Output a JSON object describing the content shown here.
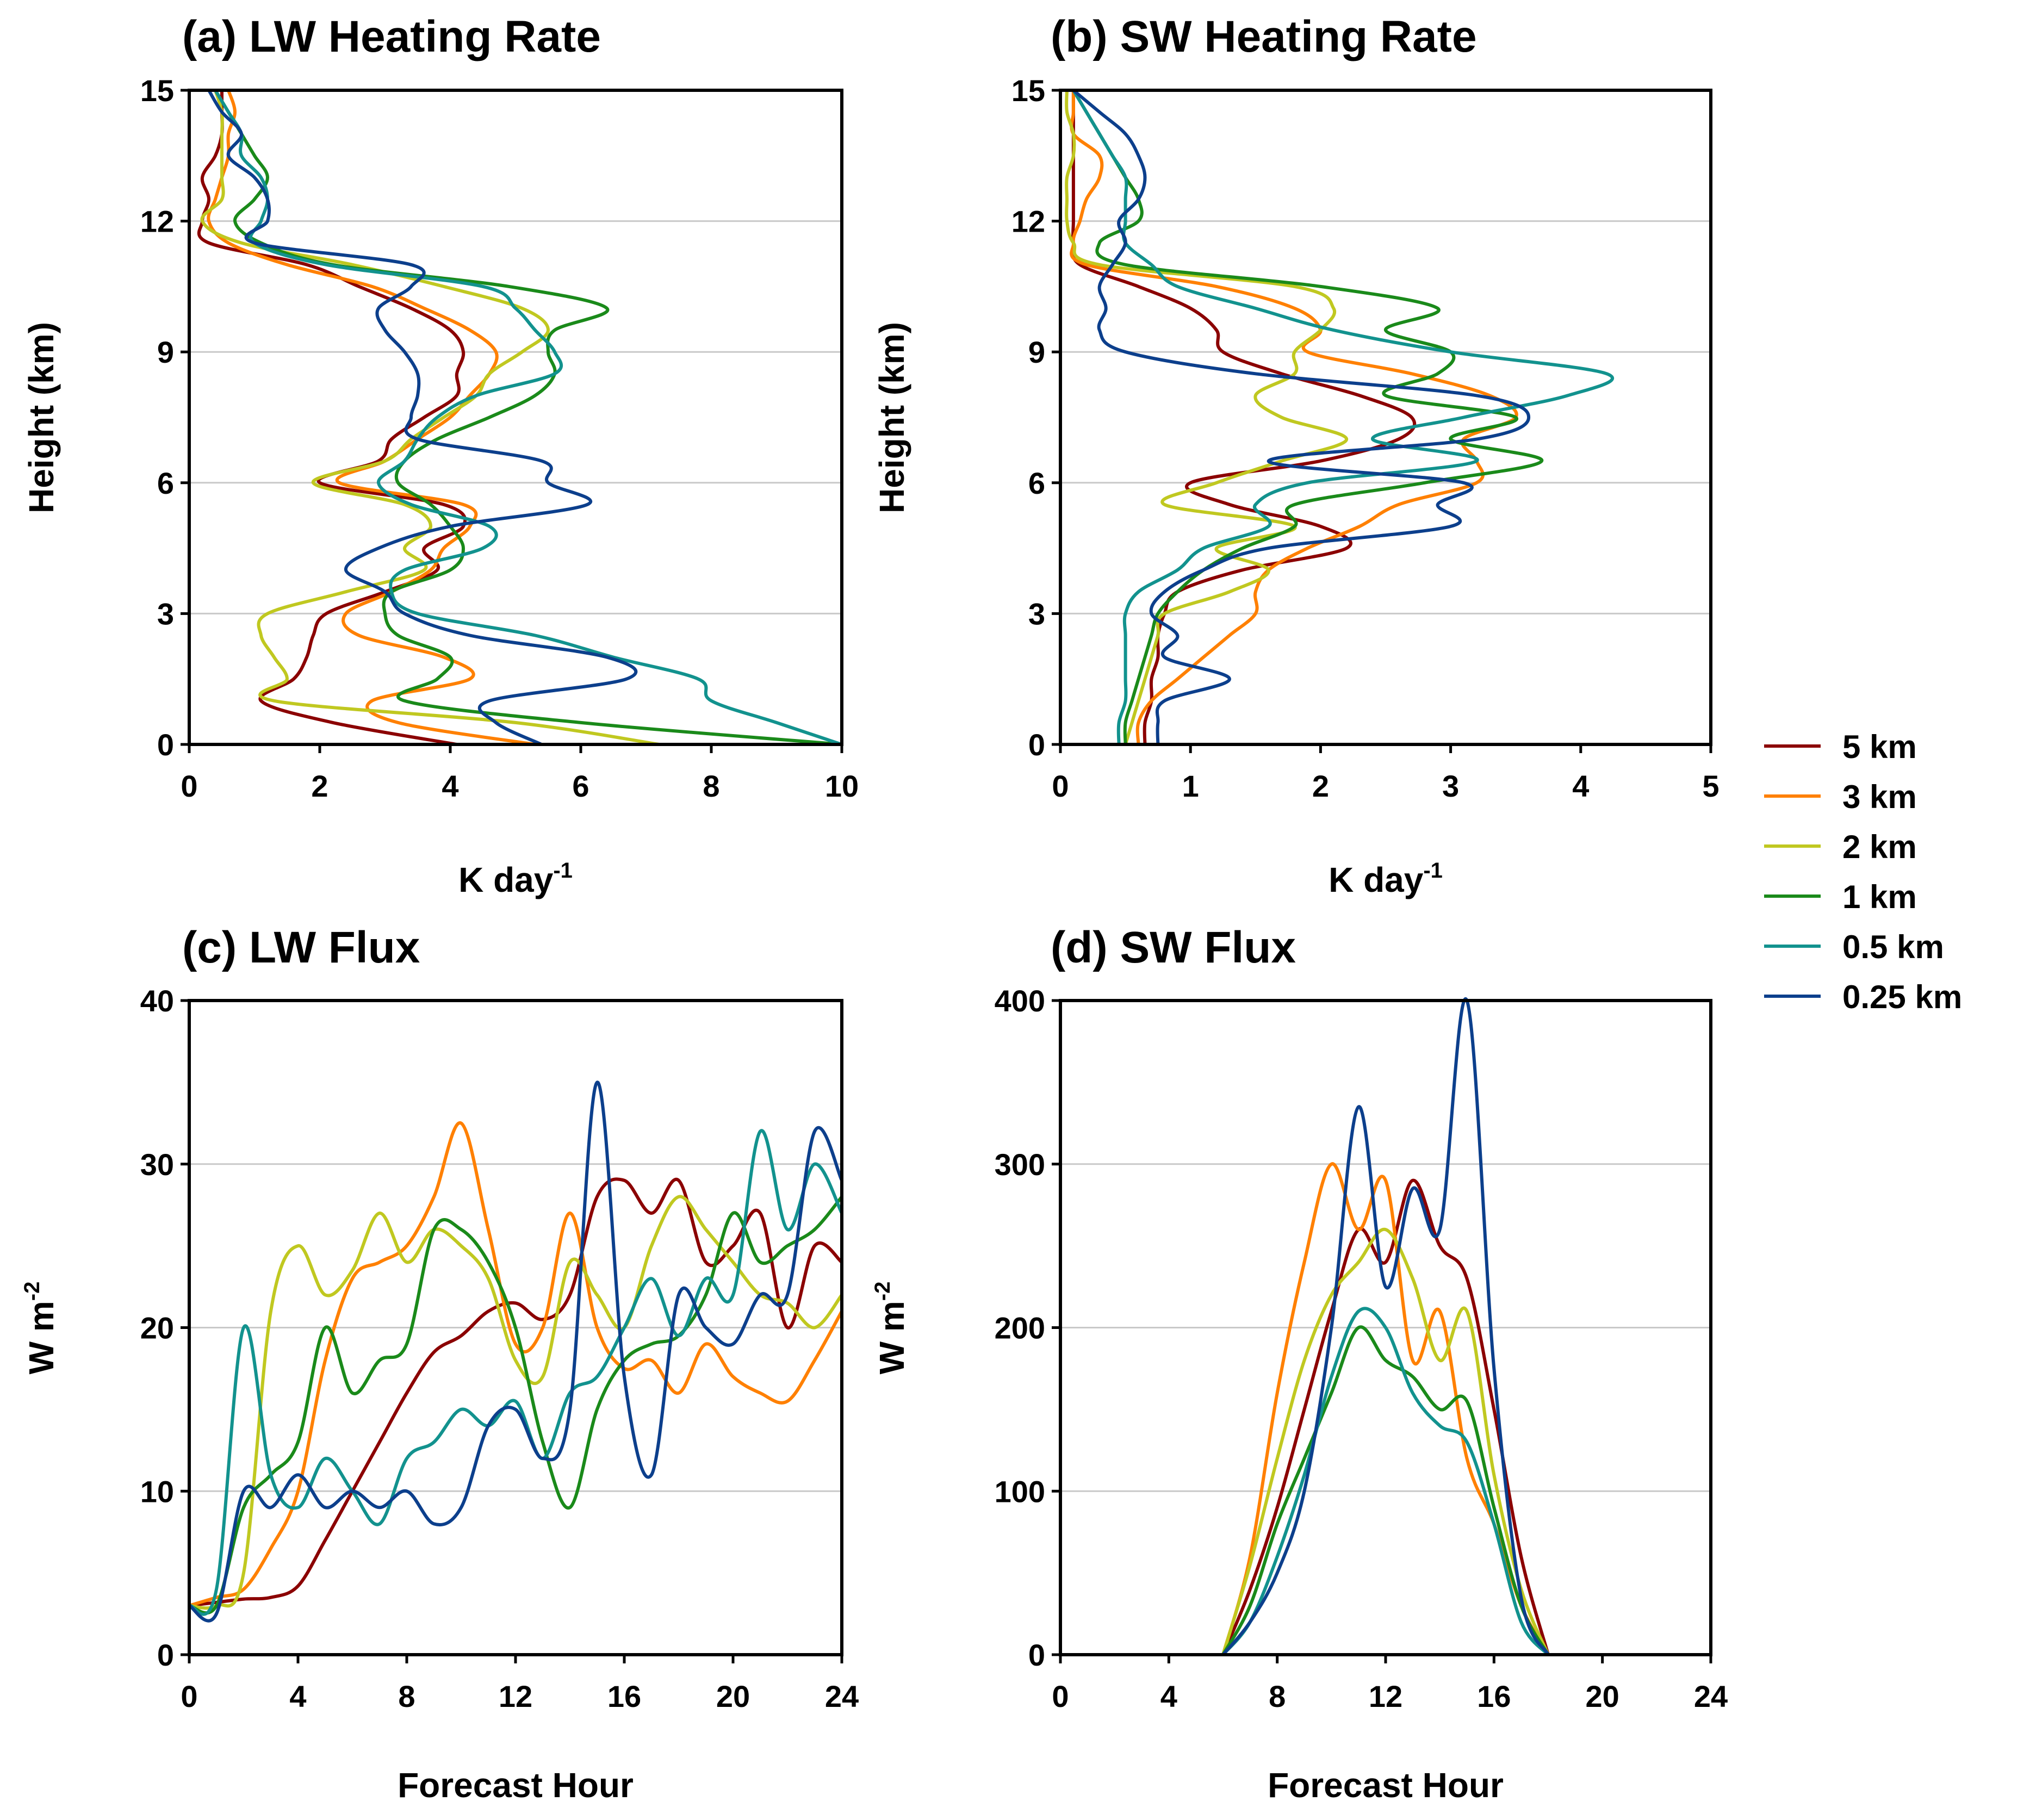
{
  "legend": [
    {
      "label": "5 km",
      "color": "#8b0000"
    },
    {
      "label": "3 km",
      "color": "#ff8000"
    },
    {
      "label": "2 km",
      "color": "#c0c820"
    },
    {
      "label": "1 km",
      "color": "#1a8a1a"
    },
    {
      "label": "0.5 km",
      "color": "#12928e"
    },
    {
      "label": "0.25 km",
      "color": "#0c3f8c"
    }
  ],
  "chart_data": [
    {
      "id": "a",
      "type": "line",
      "orientation": "profile",
      "title": "(a) LW Heating Rate",
      "xlabel": "K day",
      "xlabel_sup": "-1",
      "ylabel": "Height (km)",
      "xlim": [
        0,
        10
      ],
      "ylim": [
        0,
        15
      ],
      "xticks": [
        "0",
        "2",
        "4",
        "6",
        "8",
        "10"
      ],
      "yticks": [
        "0",
        "3",
        "6",
        "9",
        "12",
        "15"
      ],
      "grid": "horizontal",
      "y": [
        0,
        0.5,
        1,
        1.5,
        2,
        2.5,
        3,
        3.5,
        4,
        4.5,
        5,
        5.5,
        6,
        6.5,
        7,
        7.5,
        8,
        8.5,
        9,
        9.5,
        10,
        10.5,
        11,
        11.5,
        12,
        12.5,
        13,
        13.5,
        14,
        14.5,
        15
      ],
      "series": [
        {
          "name": "5 km",
          "x": [
            4.1,
            2.2,
            1.1,
            1.6,
            1.8,
            1.9,
            2.1,
            3.0,
            3.8,
            3.6,
            4.2,
            3.9,
            2.0,
            2.9,
            3.1,
            3.6,
            4.1,
            4.1,
            4.2,
            4.0,
            3.4,
            2.6,
            1.8,
            0.3,
            0.2,
            0.3,
            0.2,
            0.4,
            0.5,
            0.5,
            0.5
          ]
        },
        {
          "name": "3 km",
          "x": [
            5.3,
            3.2,
            2.8,
            4.3,
            3.9,
            2.6,
            2.4,
            3.1,
            3.7,
            3.9,
            4.3,
            4.2,
            2.3,
            3.0,
            3.5,
            4.0,
            4.3,
            4.6,
            4.7,
            4.3,
            3.6,
            2.8,
            1.5,
            0.6,
            0.3,
            0.4,
            0.5,
            0.6,
            0.6,
            0.7,
            0.6
          ]
        },
        {
          "name": "2 km",
          "x": [
            7.2,
            5.0,
            1.3,
            1.5,
            1.3,
            1.1,
            1.2,
            2.4,
            3.6,
            3.3,
            3.7,
            3.3,
            1.9,
            3.0,
            3.4,
            3.9,
            4.4,
            4.6,
            5.1,
            5.5,
            5.1,
            3.9,
            2.5,
            0.8,
            0.2,
            0.5,
            0.5,
            0.5,
            0.5,
            0.5,
            0.4
          ]
        },
        {
          "name": "1 km",
          "x": [
            10.0,
            6.0,
            3.3,
            3.8,
            4.0,
            3.2,
            3.0,
            3.1,
            4.0,
            4.2,
            4.0,
            3.7,
            3.2,
            3.3,
            3.8,
            4.6,
            5.3,
            5.6,
            5.5,
            5.6,
            6.4,
            4.9,
            2.2,
            1.1,
            0.7,
            1.0,
            1.2,
            1.0,
            0.8,
            0.6,
            0.4
          ]
        },
        {
          "name": "0.5 km",
          "x": [
            10.0,
            9.0,
            8.0,
            7.8,
            6.5,
            5.3,
            3.5,
            3.1,
            3.3,
            4.5,
            4.6,
            3.4,
            2.9,
            3.3,
            3.5,
            3.8,
            4.4,
            5.6,
            5.6,
            5.3,
            5.0,
            4.5,
            2.1,
            1.0,
            1.1,
            1.2,
            1.1,
            0.8,
            0.8,
            0.6,
            0.4
          ]
        },
        {
          "name": "0.25 km",
          "x": [
            5.4,
            4.7,
            4.6,
            6.7,
            6.4,
            4.3,
            3.3,
            3.0,
            2.4,
            2.9,
            4.0,
            6.1,
            5.5,
            5.4,
            3.5,
            3.4,
            3.5,
            3.5,
            3.3,
            3.0,
            2.9,
            3.4,
            3.4,
            1.0,
            1.2,
            1.2,
            1.0,
            0.6,
            0.8,
            0.5,
            0.3
          ]
        }
      ]
    },
    {
      "id": "b",
      "type": "line",
      "orientation": "profile",
      "title": "(b) SW Heating Rate",
      "xlabel": "K day",
      "xlabel_sup": "-1",
      "ylabel": "Height (km)",
      "xlim": [
        0,
        5
      ],
      "ylim": [
        0,
        15
      ],
      "xticks": [
        "0",
        "1",
        "2",
        "3",
        "4",
        "5"
      ],
      "yticks": [
        "0",
        "3",
        "6",
        "9",
        "12",
        "15"
      ],
      "grid": "horizontal",
      "y": [
        0,
        0.5,
        1,
        1.5,
        2,
        2.5,
        3,
        3.5,
        4,
        4.5,
        5,
        5.5,
        6,
        6.5,
        7,
        7.5,
        8,
        8.5,
        9,
        9.5,
        10,
        10.5,
        11,
        11.5,
        12,
        12.5,
        13,
        13.5,
        14,
        14.5,
        15
      ],
      "series": [
        {
          "name": "5 km",
          "x": [
            0.65,
            0.65,
            0.7,
            0.7,
            0.75,
            0.75,
            0.8,
            0.9,
            1.4,
            2.2,
            2.0,
            1.3,
            1.0,
            2.0,
            2.6,
            2.7,
            2.3,
            1.7,
            1.25,
            1.2,
            1.0,
            0.6,
            0.15,
            0.1,
            0.1,
            0.1,
            0.1,
            0.1,
            0.1,
            0.1,
            0.1
          ]
        },
        {
          "name": "3 km",
          "x": [
            0.6,
            0.6,
            0.7,
            0.9,
            1.1,
            1.3,
            1.5,
            1.5,
            1.6,
            1.9,
            2.3,
            2.6,
            3.2,
            3.2,
            3.1,
            3.5,
            3.3,
            2.7,
            1.9,
            2.0,
            1.8,
            1.2,
            0.2,
            0.1,
            0.15,
            0.2,
            0.3,
            0.3,
            0.1,
            0.1,
            0.1
          ]
        },
        {
          "name": "2 km",
          "x": [
            0.5,
            0.55,
            0.6,
            0.65,
            0.7,
            0.75,
            0.8,
            1.3,
            1.6,
            1.2,
            1.8,
            0.8,
            1.2,
            1.7,
            2.2,
            1.7,
            1.5,
            1.8,
            1.8,
            2.0,
            2.1,
            1.8,
            0.3,
            0.1,
            0.05,
            0.05,
            0.05,
            0.1,
            0.1,
            0.05,
            0.05
          ]
        },
        {
          "name": "1 km",
          "x": [
            0.5,
            0.5,
            0.55,
            0.6,
            0.65,
            0.7,
            0.75,
            0.9,
            1.1,
            1.4,
            1.8,
            1.8,
            2.8,
            3.7,
            3.0,
            3.5,
            2.5,
            2.9,
            3.0,
            2.5,
            2.9,
            2.0,
            0.5,
            0.3,
            0.6,
            0.6,
            0.5,
            0.4,
            0.3,
            0.2,
            0.1
          ]
        },
        {
          "name": "0.5 km",
          "x": [
            0.45,
            0.45,
            0.5,
            0.5,
            0.5,
            0.5,
            0.5,
            0.6,
            0.9,
            1.1,
            1.6,
            1.5,
            1.9,
            3.2,
            2.4,
            3.1,
            3.9,
            4.2,
            3.0,
            2.1,
            1.5,
            0.9,
            0.7,
            0.5,
            0.5,
            0.5,
            0.5,
            0.4,
            0.3,
            0.2,
            0.1
          ]
        },
        {
          "name": "0.25 km",
          "x": [
            0.75,
            0.75,
            0.8,
            1.3,
            0.8,
            0.9,
            0.7,
            0.8,
            1.1,
            1.6,
            3.0,
            2.9,
            3.1,
            1.6,
            3.2,
            3.6,
            3.2,
            1.5,
            0.5,
            0.3,
            0.35,
            0.3,
            0.4,
            0.5,
            0.45,
            0.6,
            0.65,
            0.6,
            0.5,
            0.3,
            0.1
          ]
        }
      ]
    },
    {
      "id": "c",
      "type": "line",
      "orientation": "timeseries",
      "title": "(c) LW Flux",
      "xlabel": "Forecast Hour",
      "ylabel": "W m",
      "ylabel_sup": "-2",
      "xlim": [
        0,
        24
      ],
      "ylim": [
        0,
        40
      ],
      "xticks": [
        "0",
        "4",
        "8",
        "12",
        "16",
        "20",
        "24"
      ],
      "yticks": [
        "0",
        "10",
        "20",
        "30",
        "40"
      ],
      "grid": "horizontal",
      "x": [
        0,
        1,
        2,
        3,
        4,
        5,
        6,
        7,
        8,
        9,
        10,
        11,
        12,
        13,
        14,
        15,
        16,
        17,
        18,
        19,
        20,
        21,
        22,
        23,
        24
      ],
      "series": [
        {
          "name": "5 km",
          "values": [
            3,
            3.2,
            3.4,
            3.5,
            4.2,
            7,
            10,
            13,
            16,
            18.5,
            19.5,
            21,
            21.5,
            20.5,
            22,
            28,
            29,
            27,
            29,
            24,
            25,
            27,
            20,
            25,
            24
          ]
        },
        {
          "name": "3 km",
          "values": [
            3,
            3.5,
            4,
            6.5,
            10,
            18,
            23,
            24,
            25,
            28,
            32.5,
            26,
            19,
            20,
            27,
            20,
            17.5,
            18,
            16,
            19,
            17,
            16,
            15.5,
            18,
            21
          ]
        },
        {
          "name": "2 km",
          "values": [
            3,
            3,
            5,
            21,
            25,
            22,
            23.5,
            27,
            24,
            26,
            25,
            23,
            18,
            17,
            24,
            22,
            20,
            25,
            28,
            26,
            24,
            22,
            21.5,
            20,
            22
          ]
        },
        {
          "name": "1 km",
          "values": [
            3,
            3,
            9,
            11,
            13,
            20,
            16,
            18,
            19,
            26,
            26,
            24,
            20,
            13,
            9,
            15,
            18,
            19,
            19.5,
            22,
            27,
            24,
            25,
            26,
            28
          ]
        },
        {
          "name": "0.5 km",
          "values": [
            3,
            4,
            20,
            11,
            9,
            12,
            10,
            8,
            12,
            13,
            15,
            14,
            15.5,
            12,
            16,
            17,
            20,
            23,
            19.5,
            23,
            22,
            32,
            26,
            30,
            27
          ]
        },
        {
          "name": "0.25 km",
          "values": [
            3,
            2.5,
            10,
            9,
            11,
            9,
            10,
            9,
            10,
            8,
            9,
            14,
            15,
            12,
            15,
            35,
            17,
            11,
            22,
            20,
            19,
            22,
            22,
            32,
            29
          ]
        }
      ]
    },
    {
      "id": "d",
      "type": "line",
      "orientation": "timeseries",
      "title": "(d) SW Flux",
      "xlabel": "Forecast Hour",
      "ylabel": "W m",
      "ylabel_sup": "-2",
      "xlim": [
        0,
        24
      ],
      "ylim": [
        0,
        400
      ],
      "xticks": [
        "0",
        "4",
        "8",
        "12",
        "16",
        "20",
        "24"
      ],
      "yticks": [
        "0",
        "100",
        "200",
        "300",
        "400"
      ],
      "grid": "horizontal",
      "x": [
        6,
        7,
        8,
        9,
        10,
        11,
        12,
        13,
        14,
        15,
        16,
        17,
        18
      ],
      "series": [
        {
          "name": "5 km",
          "values": [
            0,
            40,
            90,
            150,
            210,
            260,
            240,
            290,
            250,
            230,
            150,
            60,
            0
          ]
        },
        {
          "name": "3 km",
          "values": [
            0,
            60,
            160,
            240,
            300,
            260,
            290,
            180,
            210,
            120,
            80,
            30,
            0
          ]
        },
        {
          "name": "2 km",
          "values": [
            0,
            55,
            120,
            180,
            220,
            240,
            260,
            230,
            180,
            210,
            110,
            40,
            0
          ]
        },
        {
          "name": "1 km",
          "values": [
            0,
            30,
            80,
            120,
            160,
            200,
            180,
            170,
            150,
            155,
            90,
            30,
            0
          ]
        },
        {
          "name": "0.5 km",
          "values": [
            0,
            20,
            60,
            110,
            170,
            210,
            200,
            160,
            140,
            130,
            80,
            20,
            0
          ]
        },
        {
          "name": "0.25 km",
          "values": [
            0,
            20,
            50,
            100,
            200,
            335,
            225,
            285,
            260,
            400,
            175,
            35,
            0
          ]
        }
      ]
    }
  ]
}
